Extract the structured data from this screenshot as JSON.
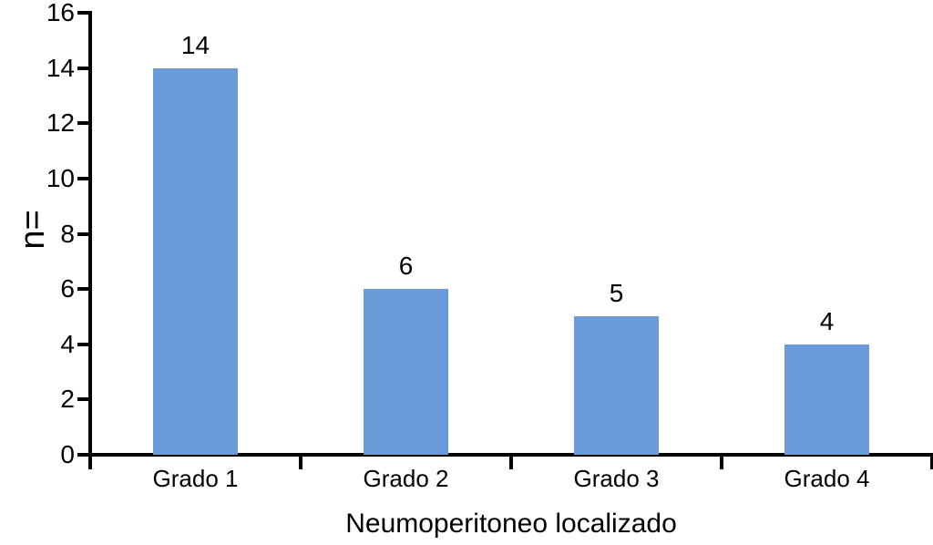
{
  "chart_data": {
    "type": "bar",
    "title": "",
    "categories": [
      "Grado 1",
      "Grado 2",
      "Grado 3",
      "Grado 4"
    ],
    "values": [
      14,
      6,
      5,
      4
    ],
    "bar_value_labels": [
      "14",
      "6",
      "5",
      "4"
    ],
    "xlabel": "Neumoperitoneo localizado",
    "ylabel": "n=",
    "ylim": [
      0,
      16
    ],
    "yticks": [
      0,
      2,
      4,
      6,
      8,
      10,
      12,
      14,
      16
    ],
    "grid": false,
    "legend": null,
    "colors": {
      "bar_fill": "#6A9AD8",
      "axis": "#000000",
      "text": "#000000",
      "background": "#ffffff"
    }
  }
}
